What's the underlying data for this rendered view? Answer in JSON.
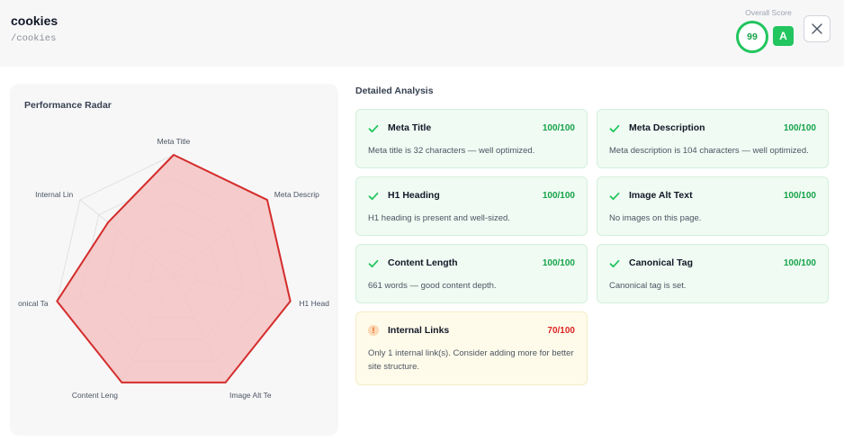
{
  "header": {
    "title": "cookies",
    "path": "/cookies",
    "score_label": "Overall Score",
    "score": "99",
    "grade": "A",
    "close_icon": "close-icon"
  },
  "radar": {
    "title": "Performance Radar",
    "labels": [
      "Meta Title",
      "Meta Descrip",
      "H1 Head",
      "Image Alt Te",
      "Content Leng",
      "onical Ta",
      "Internal Lin"
    ],
    "values": [
      100,
      100,
      100,
      100,
      100,
      100,
      70
    ],
    "max": 100,
    "fill_color": "#f4c3c3",
    "stroke_color": "#d42c2c"
  },
  "analysis": {
    "title": "Detailed Analysis",
    "cards": [
      {
        "name": "Meta Title",
        "score": "100/100",
        "desc": "Meta title is 32 characters — well optimized.",
        "status": "pass"
      },
      {
        "name": "Meta Description",
        "score": "100/100",
        "desc": "Meta description is 104 characters — well optimized.",
        "status": "pass"
      },
      {
        "name": "H1 Heading",
        "score": "100/100",
        "desc": "H1 heading is present and well-sized.",
        "status": "pass"
      },
      {
        "name": "Image Alt Text",
        "score": "100/100",
        "desc": "No images on this page.",
        "status": "pass"
      },
      {
        "name": "Content Length",
        "score": "100/100",
        "desc": "661 words — good content depth.",
        "status": "pass"
      },
      {
        "name": "Canonical Tag",
        "score": "100/100",
        "desc": "Canonical tag is set.",
        "status": "pass"
      },
      {
        "name": "Internal Links",
        "score": "70/100",
        "desc": "Only 1 internal link(s). Consider adding more for better site structure.",
        "status": "warn"
      }
    ]
  },
  "colors": {
    "pass": "#22c55e",
    "warn": "#ea580c",
    "fail_score": "#dc2626"
  }
}
